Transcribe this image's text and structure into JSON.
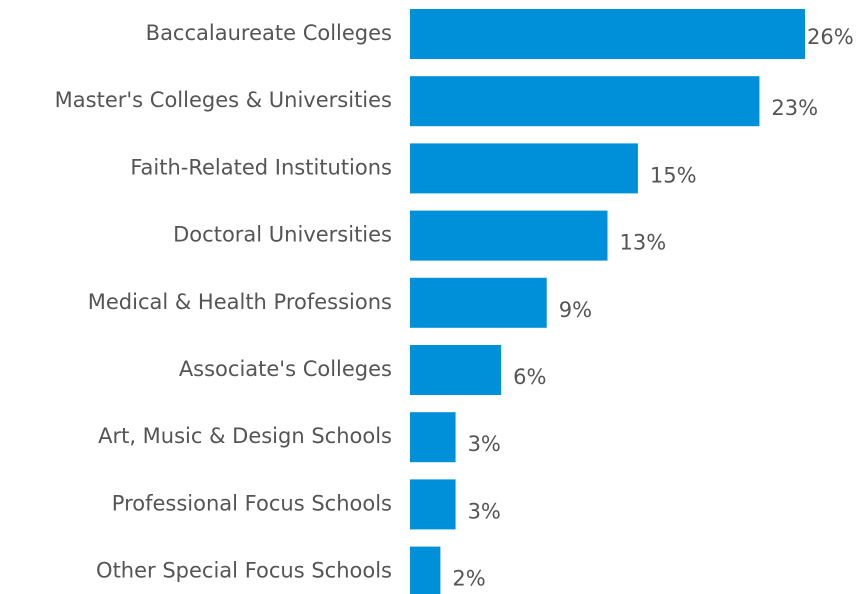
{
  "chart_data": {
    "type": "bar",
    "orientation": "horizontal",
    "categories": [
      "Baccalaureate Colleges",
      "Master's Colleges & Universities",
      "Faith-Related Institutions",
      "Doctoral Universities",
      "Medical & Health Professions",
      "Associate's Colleges",
      "Art, Music & Design Schools",
      "Professional Focus Schools",
      "Other Special Focus Schools"
    ],
    "values": [
      26,
      23,
      15,
      13,
      9,
      6,
      3,
      3,
      2
    ],
    "value_labels": [
      "26%",
      "23%",
      "15%",
      "13%",
      "9%",
      "6%",
      "3%",
      "3%",
      "2%"
    ],
    "color": "#0090d9"
  }
}
